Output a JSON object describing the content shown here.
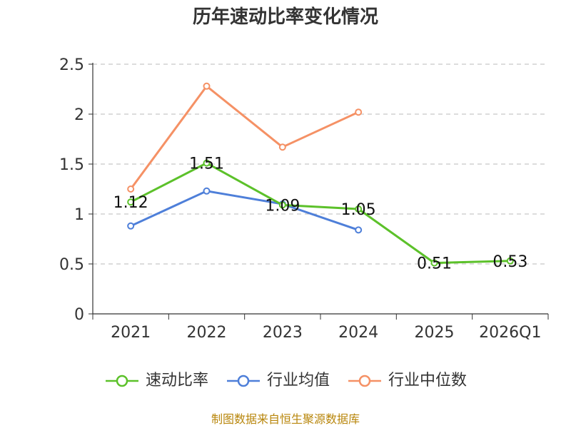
{
  "chart_data": {
    "type": "line",
    "title": "历年速动比率变化情况",
    "xlabel": "",
    "ylabel": "",
    "categories": [
      "2021",
      "2022",
      "2023",
      "2024",
      "2025",
      "2026Q1"
    ],
    "ylim": [
      0,
      2.5
    ],
    "yticks": [
      0,
      0.5,
      1,
      1.5,
      2,
      2.5
    ],
    "ytick_labels": [
      "0",
      "0.5",
      "1",
      "1.5",
      "2",
      "2.5"
    ],
    "grid": "horizontal-dashed",
    "legend_position": "bottom",
    "series": [
      {
        "name": "速动比率",
        "color": "#5cc12a",
        "values": [
          1.12,
          1.51,
          1.09,
          1.05,
          0.51,
          0.53
        ],
        "labels": [
          "1.12",
          "1.51",
          "1.09",
          "1.05",
          "0.51",
          "0.53"
        ]
      },
      {
        "name": "行业均值",
        "color": "#4e7fd9",
        "values": [
          0.88,
          1.23,
          1.1,
          0.84,
          null,
          null
        ]
      },
      {
        "name": "行业中位数",
        "color": "#f59165",
        "values": [
          1.25,
          2.28,
          1.67,
          2.02,
          null,
          null
        ]
      }
    ]
  },
  "source": "制图数据来自恒生聚源数据库"
}
